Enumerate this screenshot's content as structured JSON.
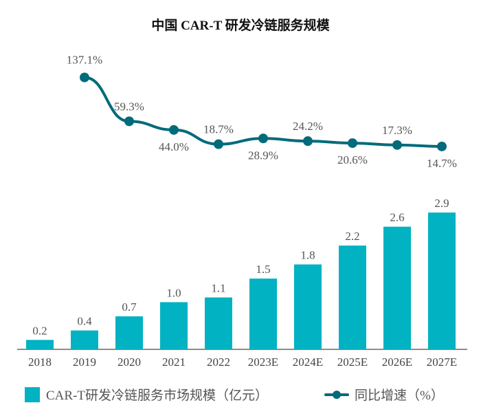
{
  "chart_data": [
    {
      "type": "bar",
      "title": "中国 CAR-T 研发冷链服务规模",
      "categories": [
        "2018",
        "2019",
        "2020",
        "2021",
        "2022",
        "2023E",
        "2024E",
        "2025E",
        "2026E",
        "2027E"
      ],
      "series": [
        {
          "name": "CAR-T研发冷链服务市场规模（亿元）",
          "values": [
            0.2,
            0.4,
            0.7,
            1.0,
            1.1,
            1.5,
            1.8,
            2.2,
            2.6,
            2.9
          ],
          "color": "#00B2C2"
        }
      ],
      "value_labels": [
        "0.2",
        "0.4",
        "0.7",
        "1.0",
        "1.1",
        "1.5",
        "1.8",
        "2.2",
        "2.6",
        "2.9"
      ],
      "xlabel": "",
      "ylabel": "",
      "grid": false,
      "legend": "bottom"
    },
    {
      "type": "line",
      "categories": [
        "2019",
        "2020",
        "2021",
        "2022",
        "2023E",
        "2024E",
        "2025E",
        "2026E",
        "2027E"
      ],
      "series": [
        {
          "name": "同比增速（%）",
          "values": [
            137.1,
            59.3,
            44.0,
            18.7,
            28.9,
            24.2,
            20.6,
            17.3,
            14.7
          ],
          "color": "#006B7A"
        }
      ],
      "value_labels": [
        "137.1%",
        "59.3%",
        "44.0%",
        "18.7%",
        "28.9%",
        "24.2%",
        "20.6%",
        "17.3%",
        "14.7%"
      ],
      "label_positions": [
        "above",
        "above",
        "below",
        "above",
        "below",
        "above",
        "below",
        "above",
        "below"
      ],
      "grid": false,
      "legend": "bottom"
    }
  ]
}
